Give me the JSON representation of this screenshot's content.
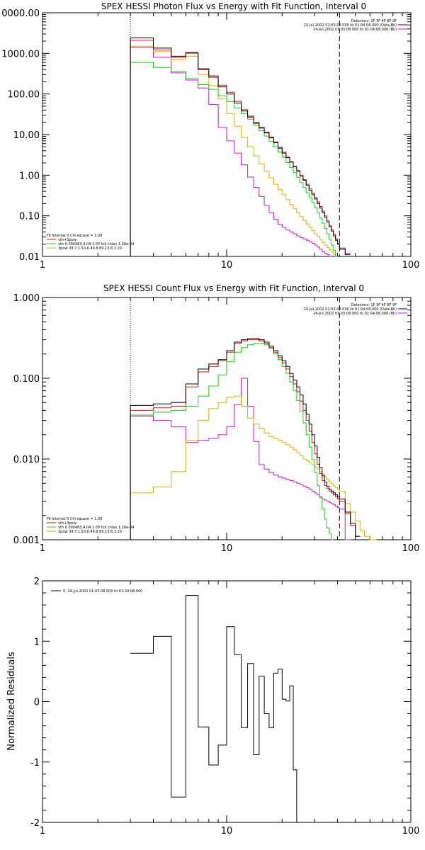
{
  "chart_data": [
    {
      "type": "line",
      "title": "SPEX HESSI Photon Flux vs Energy with Fit Function, Interval 0",
      "xlabel": "",
      "ylabel": "",
      "xscale": "log",
      "yscale": "log",
      "xlim": [
        1,
        100
      ],
      "ylim": [
        0.01,
        10000
      ],
      "x_ticks": [
        "1",
        "10",
        "100"
      ],
      "y_ticks": [
        "0.01",
        "0.10",
        "1.00",
        "10.00",
        "100.00",
        "1000.00",
        "0000.00"
      ],
      "info_lines": [
        "Detectors: 1F 3F 4F 6F 9F",
        "24-Jul-2002 01:03:08.000 to 01:04:08.000 (Data-Bk)",
        "24-Jul-2002 01:03:08.000 to 01:04:08.000 (Bk)"
      ],
      "fit_legend": [
        "Fit Interval 0   Chi-square = 1.09",
        "vth+3pow",
        "vth 0.000483,4.04,1.00   full chian 1.26e-04",
        "3pow 39.7,1.50,6.49,8.89,13.8,3.10"
      ],
      "edges": [
        3,
        4,
        5,
        6,
        7,
        8,
        9,
        10,
        11,
        12,
        13,
        14,
        15,
        16,
        17,
        18,
        19,
        20,
        21,
        22,
        23,
        24,
        25,
        26,
        27,
        28,
        29,
        30,
        31,
        32,
        33,
        34,
        35,
        36,
        37,
        38,
        39,
        40,
        41,
        44,
        47,
        50,
        53,
        56
      ],
      "series": [
        {
          "name": "Data-Bk",
          "values": [
            2400,
            1350,
            850,
            1050,
            400,
            260,
            150,
            100,
            60,
            38,
            27,
            19,
            14.5,
            11,
            8.3,
            6.3,
            4.6,
            3.5,
            2.7,
            2.1,
            1.6,
            1.25,
            0.95,
            0.75,
            0.56,
            0.42,
            0.33,
            0.26,
            0.2,
            0.155,
            0.12,
            0.092,
            0.07,
            0.054,
            0.042,
            0.032,
            0.025,
            0.02,
            0.015,
            0.011,
            null,
            null,
            null
          ]
        },
        {
          "name": "vth+3pow",
          "values": [
            2100,
            1200,
            800,
            1000,
            420,
            280,
            165,
            110,
            66,
            41,
            28.5,
            20,
            15,
            11.5,
            8.7,
            6.6,
            4.9,
            3.7,
            2.8,
            2.15,
            1.65,
            1.3,
            1.0,
            0.78,
            0.6,
            0.46,
            0.36,
            0.28,
            0.22,
            0.17,
            0.13,
            0.1,
            0.075,
            0.058,
            0.045,
            0.035,
            0.027,
            0.021,
            0.016,
            0.012,
            null,
            null,
            null
          ]
        },
        {
          "name": "vth",
          "values": [
            600,
            450,
            360,
            240,
            170,
            130,
            90,
            65,
            45,
            33,
            24,
            17,
            12.5,
            9.2,
            6.8,
            5.0,
            3.7,
            2.75,
            2.05,
            1.55,
            1.17,
            0.88,
            0.66,
            0.5,
            0.37,
            0.28,
            0.21,
            0.16,
            0.12,
            0.088,
            0.066,
            0.049,
            0.036,
            0.026,
            0.019,
            0.014,
            0.01,
            null,
            null,
            null,
            null,
            null,
            null
          ]
        },
        {
          "name": "3pow",
          "values": [
            1500,
            1100,
            700,
            850,
            300,
            160,
            75,
            33,
            16,
            8.5,
            5.0,
            3.0,
            1.9,
            1.25,
            0.85,
            0.6,
            0.44,
            0.33,
            0.25,
            0.19,
            0.15,
            0.12,
            0.095,
            0.077,
            0.063,
            0.052,
            0.043,
            0.036,
            0.031,
            0.026,
            0.022,
            0.019,
            0.0165,
            0.0145,
            0.0128,
            0.0113,
            0.01,
            null,
            null,
            null,
            null,
            null,
            null
          ]
        },
        {
          "name": "Bk",
          "values": [
            1400,
            800,
            330,
            220,
            140,
            55,
            15,
            7.0,
            3.5,
            1.8,
            0.9,
            0.5,
            0.3,
            0.18,
            0.12,
            0.082,
            0.062,
            0.052,
            0.045,
            0.04,
            0.036,
            0.032,
            0.029,
            0.027,
            0.025,
            0.023,
            0.021,
            0.019,
            0.017,
            0.015,
            0.013,
            0.012,
            0.011,
            0.01,
            null,
            null,
            null,
            null,
            null,
            null,
            null,
            null,
            null
          ]
        }
      ],
      "colors": {
        "Data-Bk": "#000000",
        "vth+3pow": "#e01010",
        "vth": "#10d010",
        "3pow": "#d8b000",
        "Bk": "#d010d0"
      },
      "markers": [
        {
          "x": 3,
          "style": "dotted"
        },
        {
          "x": 41,
          "style": "dashed"
        }
      ]
    },
    {
      "type": "line",
      "title": "SPEX HESSI Count Flux vs Energy with Fit Function, Interval 0",
      "xlabel": "",
      "ylabel": "",
      "xscale": "log",
      "yscale": "log",
      "xlim": [
        1,
        100
      ],
      "ylim": [
        0.001,
        1
      ],
      "x_ticks": [
        "1",
        "10",
        "100"
      ],
      "y_ticks": [
        "0.001",
        "0.010",
        "0.100",
        "1.000"
      ],
      "info_lines": [
        "Detectors: 1F 3F 4F 6F 9F",
        "24-Jul-2002 01:03:08.000 to 01:04:08.000 (Data-Bk)",
        "24-Jul-2002 01:03:08.000 to 01:04:08.000 (Bk)"
      ],
      "fit_legend": [
        "Fit Interval 0   Chi-square = 1.09",
        "vth+3pow",
        "vth 0.000483,4.04,1.00   full chian 1.26e-04",
        "3pow 39.7,1.50,6.49,8.89,13.8,3.10"
      ],
      "edges": [
        3,
        4,
        5,
        6,
        7,
        8,
        9,
        10,
        11,
        12,
        13,
        14,
        15,
        16,
        17,
        18,
        19,
        20,
        21,
        22,
        23,
        24,
        25,
        26,
        27,
        28,
        29,
        30,
        31,
        32,
        33,
        34,
        35,
        36,
        37,
        38,
        39,
        40,
        41,
        44,
        47,
        50,
        53,
        56,
        60,
        65
      ],
      "series": [
        {
          "name": "Data-Bk",
          "values": [
            0.046,
            0.048,
            0.05,
            0.085,
            0.13,
            0.15,
            0.17,
            0.22,
            0.28,
            0.3,
            0.31,
            0.31,
            0.3,
            0.28,
            0.25,
            0.22,
            0.19,
            0.165,
            0.14,
            0.115,
            0.095,
            0.078,
            0.062,
            0.048,
            0.036,
            0.027,
            0.02,
            0.0145,
            0.0105,
            0.0078,
            0.0062,
            0.0052,
            0.0046,
            0.0042,
            0.004,
            0.0038,
            0.0036,
            0.0034,
            0.0032,
            0.0022,
            0.0016,
            0.0011,
            null,
            null,
            null
          ]
        },
        {
          "name": "vth+3pow",
          "values": [
            0.04,
            0.043,
            0.045,
            0.078,
            0.12,
            0.14,
            0.165,
            0.21,
            0.27,
            0.29,
            0.3,
            0.3,
            0.29,
            0.27,
            0.24,
            0.21,
            0.18,
            0.155,
            0.13,
            0.105,
            0.085,
            0.068,
            0.052,
            0.04,
            0.03,
            0.022,
            0.016,
            0.0116,
            0.0086,
            0.0066,
            0.0054,
            0.0047,
            0.0043,
            0.004,
            0.0038,
            0.0036,
            0.0034,
            0.0032,
            0.003,
            0.0021,
            0.0015,
            0.0011,
            null,
            null,
            null
          ]
        },
        {
          "name": "vth",
          "values": [
            0.035,
            0.038,
            0.04,
            0.045,
            0.06,
            0.08,
            0.11,
            0.16,
            0.21,
            0.24,
            0.26,
            0.27,
            0.27,
            0.26,
            0.235,
            0.2,
            0.17,
            0.14,
            0.115,
            0.09,
            0.07,
            0.053,
            0.039,
            0.028,
            0.02,
            0.014,
            0.0098,
            0.0068,
            0.0047,
            0.0033,
            0.0024,
            0.0018,
            0.0014,
            0.0012,
            0.001,
            null,
            null,
            null,
            null,
            null,
            null,
            null,
            null,
            null,
            null
          ]
        },
        {
          "name": "3pow",
          "values": [
            0.0038,
            0.0045,
            0.007,
            0.017,
            0.03,
            0.042,
            0.05,
            0.058,
            0.06,
            0.045,
            0.032,
            0.027,
            0.024,
            0.021,
            0.019,
            0.018,
            0.017,
            0.016,
            0.015,
            0.014,
            0.013,
            0.012,
            0.011,
            0.01,
            0.0095,
            0.009,
            0.0085,
            0.008,
            0.0075,
            0.007,
            0.0065,
            0.006,
            0.0055,
            0.0052,
            0.0049,
            0.0046,
            0.0044,
            0.0042,
            0.004,
            0.0028,
            0.0022,
            0.0017,
            0.0013,
            0.0011,
            0.001
          ]
        },
        {
          "name": "Bk",
          "values": [
            0.034,
            0.03,
            0.025,
            0.016,
            0.017,
            0.018,
            0.02,
            0.025,
            0.047,
            0.1,
            0.045,
            0.0165,
            0.0085,
            0.0075,
            0.0068,
            0.0063,
            0.006,
            0.0058,
            0.0056,
            0.0054,
            0.0052,
            0.005,
            0.0048,
            0.0046,
            0.0044,
            0.0042,
            0.004,
            0.0038,
            0.0036,
            0.0034,
            0.0032,
            0.0031,
            0.003,
            0.0029,
            0.0028,
            0.0027,
            0.0026,
            0.0025,
            0.0024,
            0.001,
            null,
            null,
            null,
            null,
            null
          ]
        }
      ],
      "colors": {
        "Data-Bk": "#000000",
        "vth+3pow": "#e01010",
        "vth": "#10d010",
        "3pow": "#d8b000",
        "Bk": "#d010d0"
      },
      "markers": [
        {
          "x": 3,
          "style": "dotted"
        },
        {
          "x": 41,
          "style": "dashed"
        }
      ]
    },
    {
      "type": "line",
      "title": "",
      "xlabel": "",
      "ylabel": "Normalized Residuals",
      "xscale": "log",
      "yscale": "linear",
      "xlim": [
        1,
        100
      ],
      "ylim": [
        -2,
        2
      ],
      "x_ticks": [
        "1",
        "10",
        "100"
      ],
      "y_ticks": [
        "-2",
        "-1",
        "0",
        "1",
        "2"
      ],
      "legend": [
        "0. 24-Jul-2002 01:03:08.000 to 01:04:08.000"
      ],
      "edges": [
        3,
        4,
        5,
        6,
        7,
        8,
        9,
        10,
        11,
        12,
        13,
        14,
        15,
        16,
        17,
        18,
        19,
        20,
        21,
        22,
        23,
        24,
        25,
        26,
        27,
        28,
        29,
        30,
        31,
        32,
        33,
        34,
        35,
        36,
        37,
        38,
        39,
        40,
        41
      ],
      "series": [
        {
          "name": "Residuals",
          "values": [
            0.8,
            1.08,
            -1.58,
            1.76,
            -0.42,
            -1.05,
            -0.72,
            1.24,
            0.78,
            -0.43,
            0.63,
            -0.88,
            0.42,
            -0.2,
            -0.43,
            0.47,
            0.54,
            0.04,
            0.01,
            0.26,
            -1.13,
            -2.0,
            -2.0,
            -2.0,
            -2.0,
            -2.0,
            -2.0,
            -2.0,
            -2.0,
            -2.0,
            -2.0,
            -2.0,
            -2.0,
            -2.0,
            -2.0,
            -2.0,
            -2.0,
            -2.0
          ]
        }
      ],
      "colors": {
        "Residuals": "#000000"
      }
    }
  ]
}
